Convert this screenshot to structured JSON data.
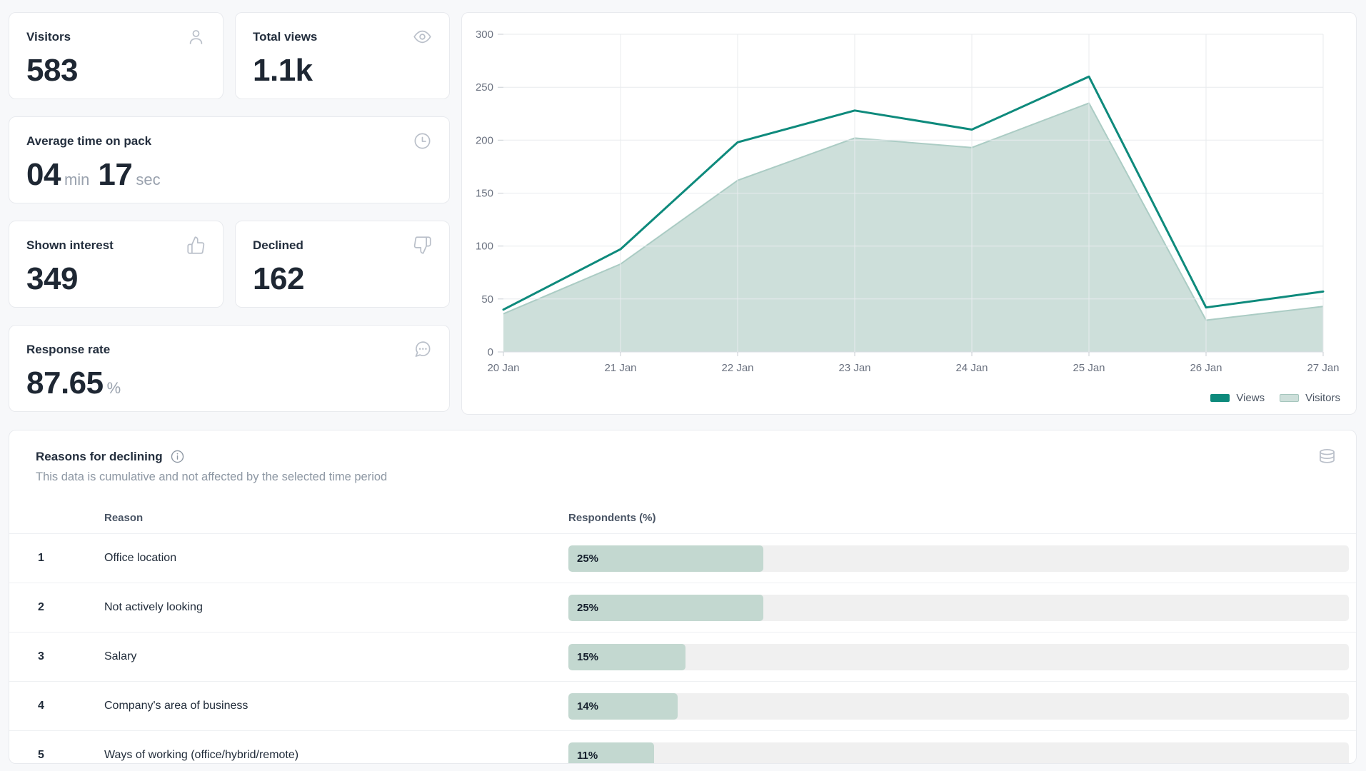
{
  "cards": {
    "visitors": {
      "label": "Visitors",
      "value": "583",
      "icon": "user-icon"
    },
    "total_views": {
      "label": "Total views",
      "value": "1.1k",
      "icon": "eye-icon"
    },
    "avg_time": {
      "label": "Average time on pack",
      "minutes": "04",
      "min_unit": "min",
      "seconds": "17",
      "sec_unit": "sec",
      "icon": "clock-icon"
    },
    "shown_interest": {
      "label": "Shown interest",
      "value": "349",
      "icon": "thumbs-up-icon"
    },
    "declined": {
      "label": "Declined",
      "value": "162",
      "icon": "thumbs-down-icon"
    },
    "response_rate": {
      "label": "Response rate",
      "value": "87.65",
      "unit": "%",
      "icon": "message-dots-icon"
    }
  },
  "chart_data": {
    "type": "area",
    "title": "",
    "xlabel": "",
    "ylabel": "",
    "x": [
      "20 Jan",
      "21 Jan",
      "22 Jan",
      "23 Jan",
      "24 Jan",
      "25 Jan",
      "26 Jan",
      "27 Jan"
    ],
    "series": [
      {
        "name": "Views",
        "style": "line",
        "color": "#0e8a7c",
        "values": [
          40,
          97,
          198,
          228,
          210,
          260,
          42,
          57
        ]
      },
      {
        "name": "Visitors",
        "style": "area",
        "color": "#cddfda",
        "stroke": "#abccc4",
        "values": [
          36,
          83,
          162,
          202,
          193,
          235,
          30,
          43
        ]
      }
    ],
    "ylim": [
      0,
      300
    ],
    "yticks": [
      0,
      50,
      100,
      150,
      200,
      250,
      300
    ],
    "grid": true,
    "legend_position": "bottom-right"
  },
  "reasons": {
    "title": "Reasons for declining",
    "subtitle": "This data is cumulative and not affected by the selected time period",
    "info_icon": "info-icon",
    "source_icon": "database-icon",
    "columns": {
      "reason": "Reason",
      "respondents": "Respondents (%)"
    },
    "rows": [
      {
        "index": "1",
        "reason": "Office location",
        "pct": 25,
        "pct_label": "25%"
      },
      {
        "index": "2",
        "reason": "Not actively looking",
        "pct": 25,
        "pct_label": "25%"
      },
      {
        "index": "3",
        "reason": "Salary",
        "pct": 15,
        "pct_label": "15%"
      },
      {
        "index": "4",
        "reason": "Company's area of business",
        "pct": 14,
        "pct_label": "14%"
      },
      {
        "index": "5",
        "reason": "Ways of working (office/hybrid/remote)",
        "pct": 11,
        "pct_label": "11%"
      }
    ]
  },
  "colors": {
    "accent_line": "#0e8a7c",
    "area_fill": "#cddfda",
    "area_stroke": "#abccc4",
    "bar_fill": "#c3d8d0",
    "bar_track": "#f0f0f0",
    "grid_line": "#e8ebee",
    "axis_text": "#6b7280"
  }
}
